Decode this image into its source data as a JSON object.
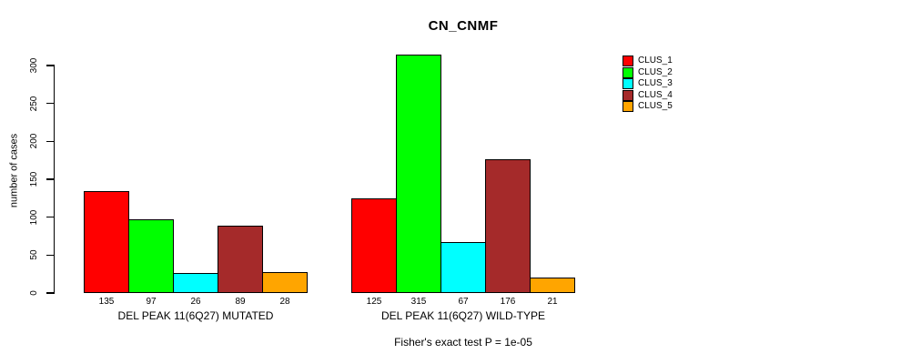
{
  "title": "CN_CNMF",
  "ylabel": "number of cases",
  "footer": "Fisher's exact test P = 1e-05",
  "chart_data": {
    "type": "bar",
    "title": "CN_CNMF",
    "ylabel": "number of cases",
    "xlabel": "",
    "ylim": [
      0,
      300
    ],
    "yticks": [
      0,
      50,
      100,
      150,
      200,
      250,
      300
    ],
    "grid": false,
    "legend_position": "right-outside",
    "bar_value_labels_shown": true,
    "categories": [
      "DEL PEAK 11(6Q27) MUTATED",
      "DEL PEAK 11(6Q27) WILD-TYPE"
    ],
    "series": [
      {
        "name": "CLUS_1",
        "color": "#FF0000",
        "values": [
          135,
          125
        ]
      },
      {
        "name": "CLUS_2",
        "color": "#00FF00",
        "values": [
          97,
          315
        ]
      },
      {
        "name": "CLUS_3",
        "color": "#00FFFF",
        "values": [
          26,
          67
        ]
      },
      {
        "name": "CLUS_4",
        "color": "#A52A2A",
        "values": [
          89,
          176
        ]
      },
      {
        "name": "CLUS_5",
        "color": "#FFA500",
        "values": [
          28,
          21
        ]
      }
    ],
    "annotation": "Fisher's exact test P = 1e-05"
  }
}
